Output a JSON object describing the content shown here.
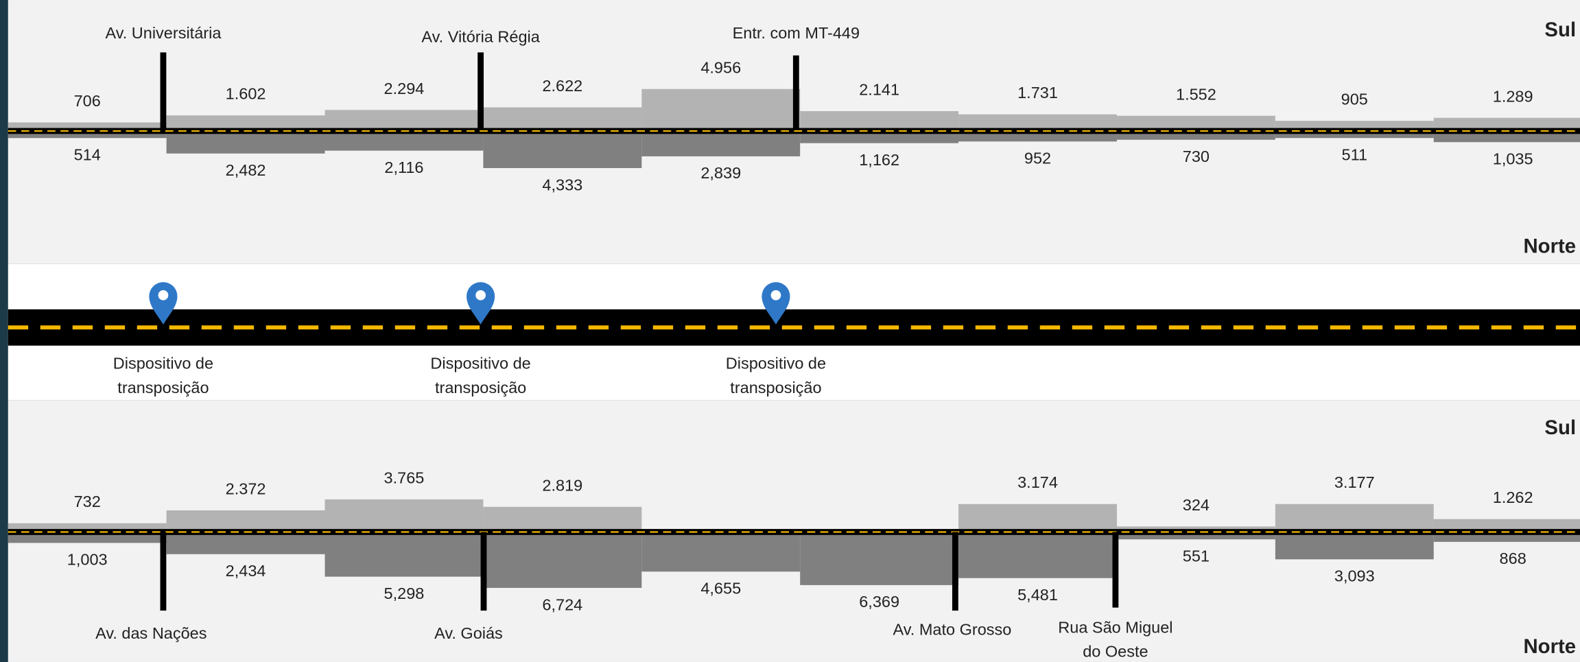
{
  "top": {
    "direction_top": "Sul",
    "direction_bottom": "Norte",
    "upper": {
      "values": [
        706,
        1602,
        2294,
        2622,
        4956,
        2141,
        1731,
        1552,
        905,
        1289
      ],
      "value_labels": [
        "706",
        "1.602",
        "2.294",
        "2.622",
        "4.956",
        "2.141",
        "1.731",
        "1.552",
        "905",
        "1.289"
      ]
    },
    "lower": {
      "values": [
        514,
        2482,
        2116,
        4333,
        2839,
        1162,
        952,
        730,
        511,
        1035
      ],
      "value_labels": [
        "514",
        "2,482",
        "2,116",
        "4,333",
        "2,839",
        "1,162",
        "952",
        "730",
        "511",
        "1,035"
      ]
    },
    "junctions": [
      {
        "label": [
          "Av. Universitária"
        ]
      },
      {
        "label": [
          "Av. Vitória Régia"
        ]
      },
      {
        "label": [
          "Entr. com MT-449"
        ]
      }
    ]
  },
  "middle": {
    "devices": [
      {
        "label": [
          "Dispositivo de",
          "transposição"
        ]
      },
      {
        "label": [
          "Dispositivo de",
          "transposição"
        ]
      },
      {
        "label": [
          "Dispositivo de",
          "transposição"
        ]
      }
    ]
  },
  "bottom": {
    "direction_top": "Sul",
    "direction_bottom": "Norte",
    "upper": {
      "values": [
        732,
        2372,
        3765,
        2819,
        null,
        null,
        3174,
        324,
        3177,
        1262
      ],
      "value_labels": [
        "732",
        "2.372",
        "3.765",
        "2.819",
        null,
        null,
        "3.174",
        "324",
        "3.177",
        "1.262"
      ]
    },
    "lower": {
      "values": [
        1003,
        2434,
        5298,
        6724,
        4655,
        6369,
        5481,
        551,
        3093,
        868
      ],
      "value_labels": [
        "1,003",
        "2,434",
        "5,298",
        "6,724",
        "4,655",
        "6,369",
        "5,481",
        "551",
        "3,093",
        "868"
      ]
    },
    "junctions": [
      {
        "label": [
          "Av. das Nações"
        ]
      },
      {
        "label": [
          "Av. Goiás"
        ]
      },
      {
        "label": [
          "Av. Mato Grosso"
        ]
      },
      {
        "label": [
          "Rua São Miguel",
          "do Oeste"
        ]
      }
    ]
  }
}
